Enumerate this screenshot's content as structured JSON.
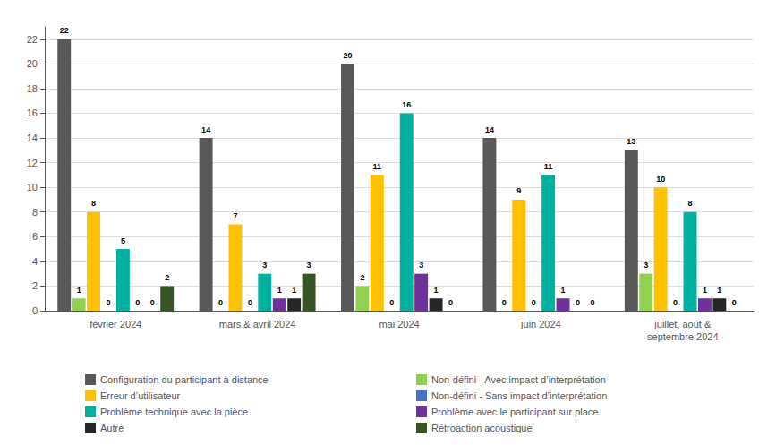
{
  "chart_data": {
    "type": "bar",
    "categories": [
      "février 2024",
      "mars & avril 2024",
      "mai 2024",
      "juin 2024",
      "juillet, août &\nseptembre 2024"
    ],
    "series": [
      {
        "name": "Configuration du participant à distance",
        "color": "#595959",
        "values": [
          22,
          14,
          20,
          14,
          13
        ]
      },
      {
        "name": "Non-défini - Avec impact d’interprétation",
        "color": "#92D050",
        "values": [
          1,
          0,
          2,
          0,
          3
        ]
      },
      {
        "name": "Erreur d’utilisateur",
        "color": "#FFC000",
        "values": [
          8,
          7,
          11,
          9,
          10
        ]
      },
      {
        "name": "Non-défini - Sans impact d’interprétation",
        "color": "#4472C4",
        "values": [
          0,
          0,
          0,
          0,
          0
        ]
      },
      {
        "name": "Problème technique avec la pièce",
        "color": "#00B0A0",
        "values": [
          5,
          3,
          16,
          11,
          8
        ]
      },
      {
        "name": "Problème avec le participant sur place",
        "color": "#7030A0",
        "values": [
          0,
          1,
          3,
          1,
          1
        ]
      },
      {
        "name": "Autre",
        "color": "#262626",
        "values": [
          0,
          1,
          1,
          0,
          1
        ]
      },
      {
        "name": "Rétroaction acoustique",
        "color": "#375623",
        "values": [
          2,
          3,
          0,
          0,
          0
        ]
      }
    ],
    "ylim": [
      0,
      23
    ],
    "yticks": [
      0,
      2,
      4,
      6,
      8,
      10,
      12,
      14,
      16,
      18,
      20,
      22
    ],
    "grid": true,
    "legend": "bottom",
    "data_labels": true
  }
}
